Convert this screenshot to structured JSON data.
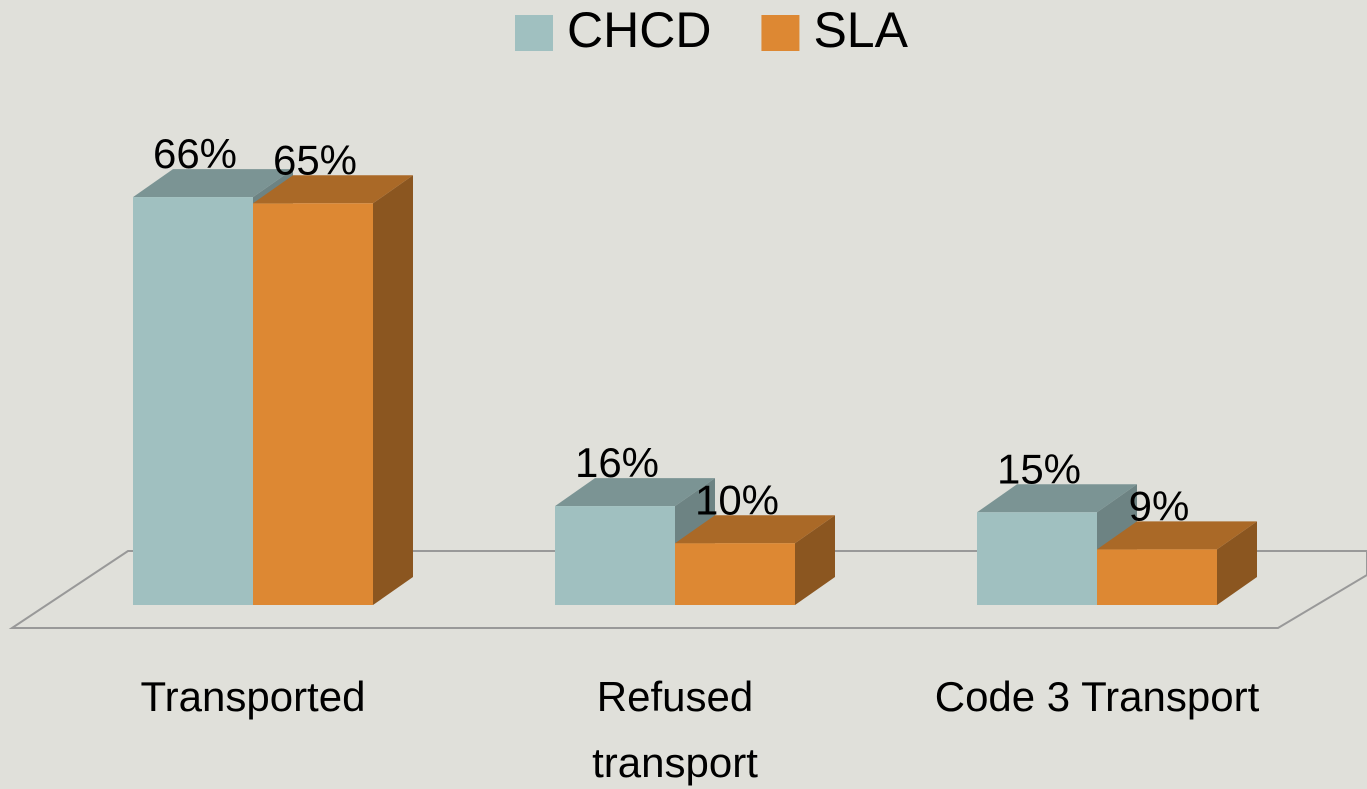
{
  "chart_data": {
    "type": "bar3d",
    "categories": [
      "Transported",
      "Refused\ntransport",
      "Code 3 Transport"
    ],
    "series": [
      {
        "name": "CHCD",
        "color": "#a0c0c0",
        "values": [
          66,
          16,
          15
        ],
        "value_labels": [
          "66%",
          "16%",
          "15%"
        ]
      },
      {
        "name": "SLA",
        "color": "#dd8833",
        "values": [
          65,
          10,
          9
        ],
        "value_labels": [
          "65%",
          "10%",
          "9%"
        ]
      }
    ],
    "legend": "top"
  }
}
